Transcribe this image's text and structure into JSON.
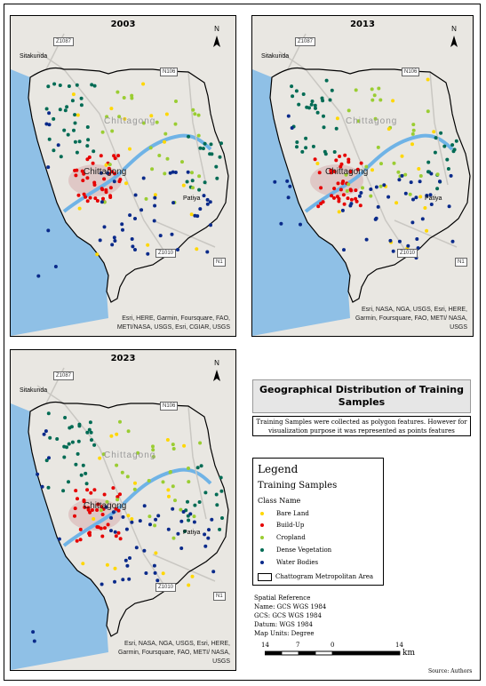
{
  "maps": [
    {
      "year": "2003",
      "credit": "Esri, HERE, Garmin, Foursquare, FAO, METI/NASA, USGS, Esri, CGIAR, USGS"
    },
    {
      "year": "2013",
      "credit": "Esri, NASA, NGA, USGS, Esri, HERE, Garmin, Foursquare, FAO, METI/ NASA, USGS"
    },
    {
      "year": "2023",
      "credit": "Esri, NASA, NGA, USGS, Esri, HERE, Garmin, Foursquare, FAO, METI/ NASA, USGS"
    }
  ],
  "place_labels": {
    "sitakunda": "Sitakunda",
    "chittagong": "Chittagong",
    "chittagong_region": "Chittagong",
    "patiya": "Patiya",
    "north": "N"
  },
  "road_shields": {
    "z1087": "Z1087",
    "n106": "N106",
    "z1010": "Z1010",
    "n1": "N1"
  },
  "title": "Geographical Distribution of Training Samples",
  "note": "Training Samples were collected as polygon features. However for visualization purpose it was represented as points features",
  "legend": {
    "title": "Legend",
    "subtitle": "Training Samples",
    "class_header": "Class Name",
    "classes": [
      {
        "name": "Bare Land",
        "color": "#ffd700"
      },
      {
        "name": "Build-Up",
        "color": "#e60000"
      },
      {
        "name": "Cropland",
        "color": "#9acd32"
      },
      {
        "name": "Dense Vegetation",
        "color": "#006b54"
      },
      {
        "name": "Water Bodies",
        "color": "#0a2a8a"
      }
    ],
    "boundary": "Chattogram Metropolitan Area"
  },
  "spatial_reference": {
    "heading": "Spatial Reference",
    "name": "Name: GCS WGS 1984",
    "gcs": "GCS: GCS WGS 1984",
    "datum": "Datum: WGS 1984",
    "units": "Map Units: Degree"
  },
  "scale": {
    "labels": [
      "14",
      "7",
      "0",
      "14"
    ],
    "unit": "km"
  },
  "source": "Source: Authors",
  "colors": {
    "sea": "#8fc0e6",
    "river": "#6fb3e6",
    "land": "#e9e7e2",
    "urban": "#d9b4b4"
  }
}
